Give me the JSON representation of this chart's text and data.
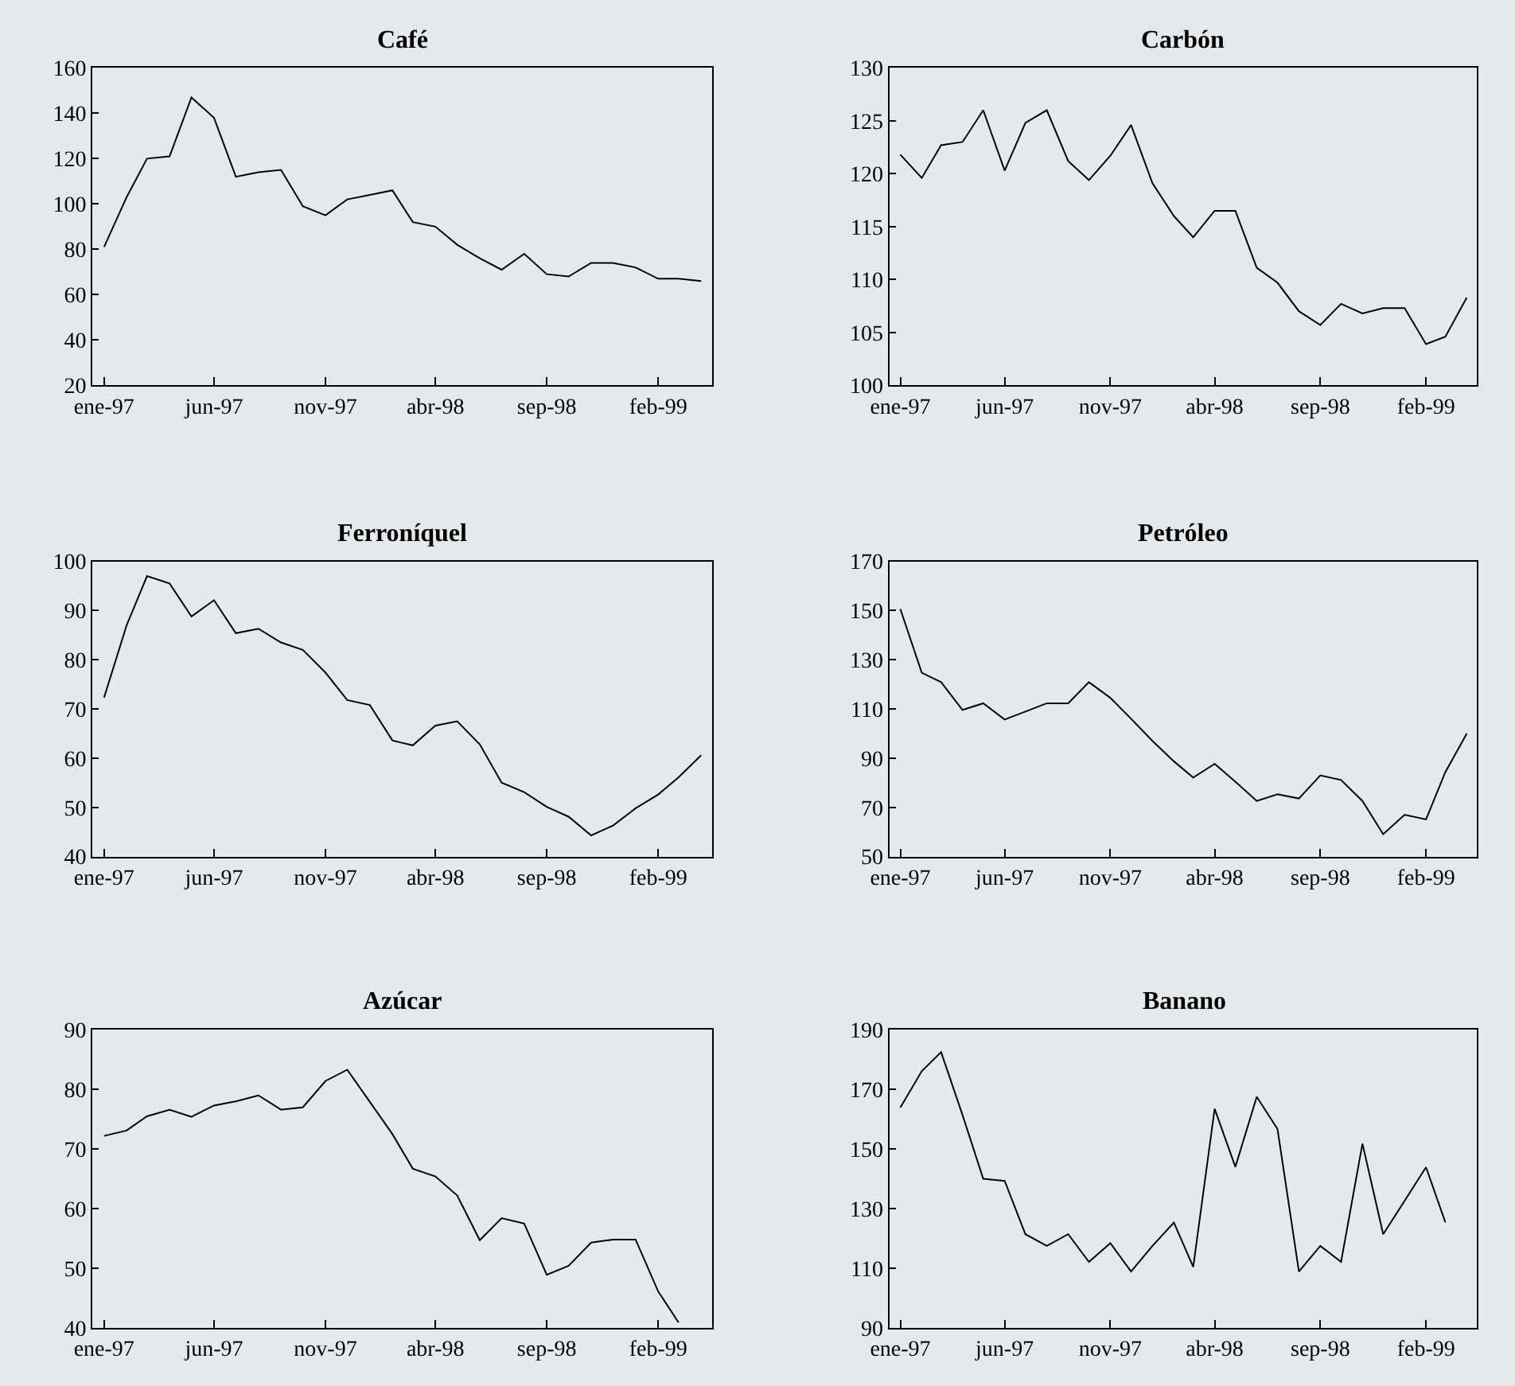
{
  "chart_data": [
    {
      "type": "line",
      "title": "Café",
      "color": "#000000",
      "x": [
        "1997-01",
        "1997-02",
        "1997-03",
        "1997-04",
        "1997-05",
        "1997-06",
        "1997-07",
        "1997-08",
        "1997-09",
        "1997-10",
        "1997-11",
        "1997-12",
        "1998-01",
        "1998-02",
        "1998-03",
        "1998-04",
        "1998-05",
        "1998-06",
        "1998-07",
        "1998-08",
        "1998-09",
        "1998-10",
        "1998-11",
        "1998-12",
        "1999-01",
        "1999-02",
        "1999-03",
        "1999-04"
      ],
      "values": [
        81,
        103,
        120,
        121,
        147,
        138,
        112,
        114,
        115,
        99,
        95,
        102,
        104,
        106,
        92,
        90,
        82,
        76,
        71,
        78,
        69,
        68,
        74,
        74,
        72,
        67,
        67,
        66
      ],
      "xlim": [
        "1996-12-16",
        "1999-04-16"
      ],
      "xticks": [
        {
          "value": "1997-01",
          "label": "ene-97"
        },
        {
          "value": "1997-06",
          "label": "jun-97"
        },
        {
          "value": "1997-11",
          "label": "nov-97"
        },
        {
          "value": "1998-04",
          "label": "abr-98"
        },
        {
          "value": "1998-09",
          "label": "sep-98"
        },
        {
          "value": "1999-02",
          "label": "feb-99"
        }
      ],
      "ylim": [
        20,
        160
      ],
      "yticks": [
        20,
        40,
        60,
        80,
        100,
        120,
        140,
        160
      ],
      "grid": false
    },
    {
      "type": "line",
      "title": "Carbón",
      "color": "#000000",
      "x": [
        "1997-01",
        "1997-02",
        "1997-03",
        "1997-04",
        "1997-05",
        "1997-06",
        "1997-07",
        "1997-08",
        "1997-09",
        "1997-10",
        "1997-11",
        "1997-12",
        "1998-01",
        "1998-02",
        "1998-03",
        "1998-04",
        "1998-05",
        "1998-06",
        "1998-07",
        "1998-08",
        "1998-09",
        "1998-10",
        "1998-11",
        "1998-12",
        "1999-01",
        "1999-02",
        "1999-03",
        "1999-04"
      ],
      "values": [
        121.8,
        119.6,
        122.7,
        123.0,
        126.0,
        120.3,
        124.8,
        126.0,
        121.2,
        119.4,
        121.7,
        124.6,
        119.1,
        116.0,
        114.0,
        116.5,
        116.5,
        111.1,
        109.7,
        107.0,
        105.7,
        107.7,
        106.8,
        107.3,
        107.3,
        103.9,
        104.6,
        108.3
      ],
      "xlim": [
        "1996-12-16",
        "1999-04-16"
      ],
      "xticks": [
        {
          "value": "1997-01",
          "label": "ene-97"
        },
        {
          "value": "1997-06",
          "label": "jun-97"
        },
        {
          "value": "1997-11",
          "label": "nov-97"
        },
        {
          "value": "1998-04",
          "label": "abr-98"
        },
        {
          "value": "1998-09",
          "label": "sep-98"
        },
        {
          "value": "1999-02",
          "label": "feb-99"
        }
      ],
      "ylim": [
        100,
        130
      ],
      "yticks": [
        100,
        105,
        110,
        115,
        120,
        125,
        130
      ],
      "grid": false
    },
    {
      "type": "line",
      "title": "Ferroníquel",
      "color": "#000000",
      "x": [
        "1997-01",
        "1997-02",
        "1997-03",
        "1997-04",
        "1997-05",
        "1997-06",
        "1997-07",
        "1997-08",
        "1997-09",
        "1997-10",
        "1997-11",
        "1997-12",
        "1998-01",
        "1998-02",
        "1998-03",
        "1998-04",
        "1998-05",
        "1998-06",
        "1998-07",
        "1998-08",
        "1998-09",
        "1998-10",
        "1998-11",
        "1998-12",
        "1999-01",
        "1999-02",
        "1999-03",
        "1999-04"
      ],
      "values": [
        72.3,
        87.0,
        97.0,
        95.5,
        88.8,
        92.1,
        85.4,
        86.3,
        83.5,
        82.0,
        77.4,
        71.8,
        70.8,
        63.6,
        62.6,
        66.6,
        67.5,
        62.8,
        55.0,
        53.1,
        50.1,
        48.1,
        44.3,
        46.3,
        49.8,
        52.6,
        56.1,
        60.6
      ],
      "xlim": [
        "1996-12-16",
        "1999-04-16"
      ],
      "xticks": [
        {
          "value": "1997-01",
          "label": "ene-97"
        },
        {
          "value": "1997-06",
          "label": "jun-97"
        },
        {
          "value": "1997-11",
          "label": "nov-97"
        },
        {
          "value": "1998-04",
          "label": "abr-98"
        },
        {
          "value": "1998-09",
          "label": "sep-98"
        },
        {
          "value": "1999-02",
          "label": "feb-99"
        }
      ],
      "ylim": [
        40,
        100
      ],
      "yticks": [
        40,
        50,
        60,
        70,
        80,
        90,
        100
      ],
      "grid": false
    },
    {
      "type": "line",
      "title": "Petróleo",
      "color": "#000000",
      "x": [
        "1997-01",
        "1997-02",
        "1997-03",
        "1997-04",
        "1997-05",
        "1997-06",
        "1997-07",
        "1997-08",
        "1997-09",
        "1997-10",
        "1997-11",
        "1997-12",
        "1998-01",
        "1998-02",
        "1998-03",
        "1998-04",
        "1998-05",
        "1998-06",
        "1998-07",
        "1998-08",
        "1998-09",
        "1998-10",
        "1998-11",
        "1998-12",
        "1999-01",
        "1999-02",
        "1999-03",
        "1999-04"
      ],
      "values": [
        150.6,
        124.7,
        120.9,
        109.6,
        112.3,
        105.7,
        108.9,
        112.3,
        112.3,
        120.9,
        114.5,
        106,
        97,
        88.7,
        82.1,
        87.7,
        80.4,
        72.6,
        75.3,
        73.6,
        83.0,
        81.1,
        72.6,
        59.1,
        67.0,
        65.1,
        84.3,
        100
      ],
      "xlim": [
        "1996-12-16",
        "1999-04-16"
      ],
      "xticks": [
        {
          "value": "1997-01",
          "label": "ene-97"
        },
        {
          "value": "1997-06",
          "label": "jun-97"
        },
        {
          "value": "1997-11",
          "label": "nov-97"
        },
        {
          "value": "1998-04",
          "label": "abr-98"
        },
        {
          "value": "1998-09",
          "label": "sep-98"
        },
        {
          "value": "1999-02",
          "label": "feb-99"
        }
      ],
      "ylim": [
        50,
        170
      ],
      "yticks": [
        50,
        70,
        90,
        110,
        130,
        150,
        170
      ],
      "grid": false
    },
    {
      "type": "line",
      "title": "Azúcar",
      "color": "#000000",
      "x": [
        "1997-01",
        "1997-02",
        "1997-03",
        "1997-04",
        "1997-05",
        "1997-06",
        "1997-07",
        "1997-08",
        "1997-09",
        "1997-10",
        "1997-11",
        "1997-12",
        "1998-01",
        "1998-02",
        "1998-03",
        "1998-04",
        "1998-05",
        "1998-06",
        "1998-07",
        "1998-08",
        "1998-09",
        "1998-10",
        "1998-11",
        "1998-12",
        "1999-01",
        "1999-02",
        "1999-03"
      ],
      "values": [
        72.2,
        73.1,
        75.5,
        76.6,
        75.4,
        77.3,
        78.0,
        79.0,
        76.6,
        77.0,
        81.4,
        83.3,
        77.9,
        72.5,
        66.7,
        65.4,
        62.2,
        54.7,
        58.4,
        57.5,
        48.9,
        50.4,
        54.3,
        54.8,
        54.8,
        46.1,
        40.9
      ],
      "xlim": [
        "1996-12-16",
        "1999-04-16"
      ],
      "xticks": [
        {
          "value": "1997-01",
          "label": "ene-97"
        },
        {
          "value": "1997-06",
          "label": "jun-97"
        },
        {
          "value": "1997-11",
          "label": "nov-97"
        },
        {
          "value": "1998-04",
          "label": "abr-98"
        },
        {
          "value": "1998-09",
          "label": "sep-98"
        },
        {
          "value": "1999-02",
          "label": "feb-99"
        }
      ],
      "ylim": [
        40,
        90
      ],
      "yticks": [
        40,
        50,
        60,
        70,
        80,
        90
      ],
      "grid": false
    },
    {
      "type": "line",
      "title": "Banano",
      "color": "#000000",
      "x": [
        "1997-01",
        "1997-02",
        "1997-03",
        "1997-04",
        "1997-05",
        "1997-06",
        "1997-07",
        "1997-08",
        "1997-09",
        "1997-10",
        "1997-11",
        "1997-12",
        "1998-01",
        "1998-02",
        "1998-03",
        "1998-04",
        "1998-05",
        "1998-06",
        "1998-07",
        "1998-08",
        "1998-09",
        "1998-10",
        "1998-11",
        "1998-12",
        "1999-01",
        "1999-02",
        "1999-03"
      ],
      "values": [
        163.9,
        176.1,
        182.5,
        161.4,
        140.0,
        139.3,
        121.4,
        117.5,
        121.4,
        112.1,
        118.4,
        108.9,
        117.5,
        125.3,
        110.4,
        163.5,
        144.0,
        167.5,
        156.7,
        108.9,
        117.5,
        112.1,
        151.8,
        121.4,
        132.6,
        143.9,
        125.4
      ],
      "xlim": [
        "1996-12-16",
        "1999-04-16"
      ],
      "xticks": [
        {
          "value": "1997-01",
          "label": "ene-97"
        },
        {
          "value": "1997-06",
          "label": "jun-97"
        },
        {
          "value": "1997-11",
          "label": "nov-97"
        },
        {
          "value": "1998-04",
          "label": "abr-98"
        },
        {
          "value": "1998-09",
          "label": "sep-98"
        },
        {
          "value": "1999-02",
          "label": "feb-99"
        }
      ],
      "ylim": [
        90,
        190
      ],
      "yticks": [
        90,
        110,
        130,
        150,
        170,
        190
      ],
      "grid": false
    }
  ]
}
